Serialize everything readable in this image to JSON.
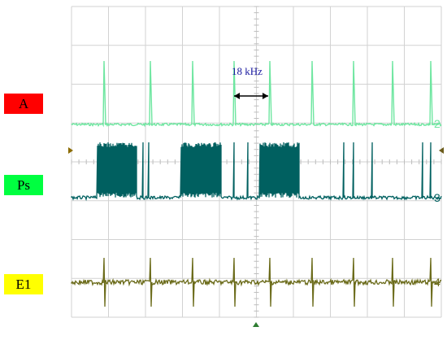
{
  "chart_data": {
    "type": "line",
    "annotation": "18 kHz",
    "channels": [
      {
        "label": "A",
        "label_color": "#ff0000",
        "trace_color": "#6ee6a0",
        "channel_number": "2",
        "pattern": "spikes"
      },
      {
        "label": "Ps",
        "label_color": "#00ff40",
        "trace_color": "#006060",
        "channel_number": "3",
        "pattern": "bursts"
      },
      {
        "label": "E1",
        "label_color": "#ffff00",
        "trace_color": "#6b6b1a",
        "channel_number": "4",
        "pattern": "spikes-bipolar"
      }
    ],
    "grid": true,
    "grid_divisions_x": 10,
    "grid_divisions_y": 8,
    "grid_color": "#d2d2d2",
    "background_color": "#ffffff"
  }
}
